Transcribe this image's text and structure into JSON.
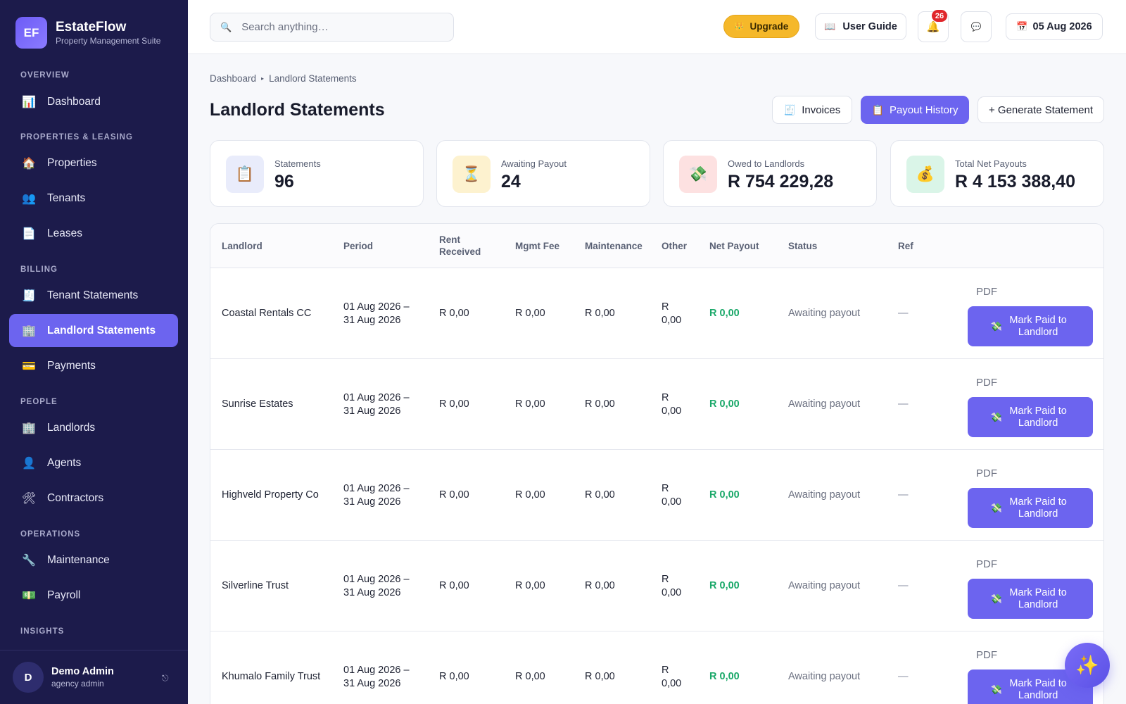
{
  "brand": {
    "logo": "EF",
    "name": "EstateFlow",
    "subtitle": "Property Management Suite"
  },
  "sidebar": {
    "sections": [
      {
        "title": "OVERVIEW"
      },
      {
        "title": "PROPERTIES & LEASING"
      },
      {
        "title": "BILLING"
      },
      {
        "title": "PEOPLE"
      },
      {
        "title": "OPERATIONS"
      },
      {
        "title": "INSIGHTS"
      }
    ],
    "items": [
      {
        "label": "Dashboard",
        "icon": "📊"
      },
      {
        "label": "Properties",
        "icon": "🏠"
      },
      {
        "label": "Tenants",
        "icon": "👥"
      },
      {
        "label": "Leases",
        "icon": "📄"
      },
      {
        "label": "Tenant Statements",
        "icon": "🧾"
      },
      {
        "label": "Landlord Statements",
        "icon": "🏢"
      },
      {
        "label": "Payments",
        "icon": "💳"
      },
      {
        "label": "Landlords",
        "icon": "🏢"
      },
      {
        "label": "Agents",
        "icon": "👤"
      },
      {
        "label": "Contractors",
        "icon": "🛠"
      },
      {
        "label": "Maintenance",
        "icon": "🔧"
      },
      {
        "label": "Payroll",
        "icon": "💵"
      }
    ],
    "user": {
      "initial": "D",
      "name": "Demo Admin",
      "role": "agency admin",
      "logout_icon": "⎋"
    }
  },
  "topbar": {
    "search_placeholder": "Search anything…",
    "search_icon": "🔍",
    "upgrade": {
      "icon": "👑",
      "label": "Upgrade"
    },
    "guide": {
      "icon": "📖",
      "label": "User Guide"
    },
    "notifications": {
      "icon": "🔔",
      "count": "26"
    },
    "chat_icon": "💬",
    "date": {
      "icon": "📅",
      "label": "05 Aug 2026"
    }
  },
  "breadcrumb": {
    "home": "Dashboard",
    "sep": "▸",
    "current": "Landlord Statements"
  },
  "page": {
    "title": "Landlord Statements",
    "actions": {
      "invoices": {
        "icon": "🧾",
        "label": "Invoices"
      },
      "payout_history": {
        "icon": "📋",
        "label": "Payout History"
      },
      "generate": {
        "label": "+ Generate Statement"
      }
    }
  },
  "stats": [
    {
      "label": "Statements",
      "value": "96",
      "icon": "📋",
      "bg": "#e9ecfb"
    },
    {
      "label": "Awaiting Payout",
      "value": "24",
      "icon": "⏳",
      "bg": "#fdf2cf"
    },
    {
      "label": "Owed to Landlords",
      "value": "R 754 229,28",
      "icon": "💸",
      "bg": "#fde1e1"
    },
    {
      "label": "Total Net Payouts",
      "value": "R 4 153 388,40",
      "icon": "💰",
      "bg": "#daf5e8"
    }
  ],
  "table": {
    "headers": {
      "landlord": "Landlord",
      "period": "Period",
      "rent_received": "Rent Received",
      "mgmt_fee": "Mgmt Fee",
      "maintenance": "Maintenance",
      "other": "Other",
      "net_payout": "Net Payout",
      "status": "Status",
      "ref": "Ref"
    },
    "rows": [
      {
        "landlord": "Coastal Rentals CC",
        "period_start": "01 Aug 2026 –",
        "period_end": "31 Aug 2026",
        "rent": "R 0,00",
        "fee": "R 0,00",
        "maint": "R 0,00",
        "other_cur": "R",
        "other_amt": "0,00",
        "net": "R 0,00",
        "status": "Awaiting payout",
        "ref": "—",
        "pdf": "PDF",
        "action_icon": "💸",
        "action": "Mark Paid to Landlord"
      },
      {
        "landlord": "Sunrise Estates",
        "period_start": "01 Aug 2026 –",
        "period_end": "31 Aug 2026",
        "rent": "R 0,00",
        "fee": "R 0,00",
        "maint": "R 0,00",
        "other_cur": "R",
        "other_amt": "0,00",
        "net": "R 0,00",
        "status": "Awaiting payout",
        "ref": "—",
        "pdf": "PDF",
        "action_icon": "💸",
        "action": "Mark Paid to Landlord"
      },
      {
        "landlord": "Highveld Property Co",
        "period_start": "01 Aug 2026 –",
        "period_end": "31 Aug 2026",
        "rent": "R 0,00",
        "fee": "R 0,00",
        "maint": "R 0,00",
        "other_cur": "R",
        "other_amt": "0,00",
        "net": "R 0,00",
        "status": "Awaiting payout",
        "ref": "—",
        "pdf": "PDF",
        "action_icon": "💸",
        "action": "Mark Paid to Landlord"
      },
      {
        "landlord": "Silverline Trust",
        "period_start": "01 Aug 2026 –",
        "period_end": "31 Aug 2026",
        "rent": "R 0,00",
        "fee": "R 0,00",
        "maint": "R 0,00",
        "other_cur": "R",
        "other_amt": "0,00",
        "net": "R 0,00",
        "status": "Awaiting payout",
        "ref": "—",
        "pdf": "PDF",
        "action_icon": "💸",
        "action": "Mark Paid to Landlord"
      },
      {
        "landlord": "Khumalo Family Trust",
        "period_start": "01 Aug 2026 –",
        "period_end": "31 Aug 2026",
        "rent": "R 0,00",
        "fee": "R 0,00",
        "maint": "R 0,00",
        "other_cur": "R",
        "other_amt": "0,00",
        "net": "R 0,00",
        "status": "Awaiting payout",
        "ref": "—",
        "pdf": "PDF",
        "action_icon": "💸",
        "action": "Mark Paid to Landlord"
      }
    ]
  },
  "fab_icon": "✨",
  "colors": {
    "sidebar_bg": "#1c1b4b",
    "accent": "#6c64ef",
    "upgrade": "#f5b82a",
    "positive": "#1aa869",
    "badge": "#e0262b"
  }
}
